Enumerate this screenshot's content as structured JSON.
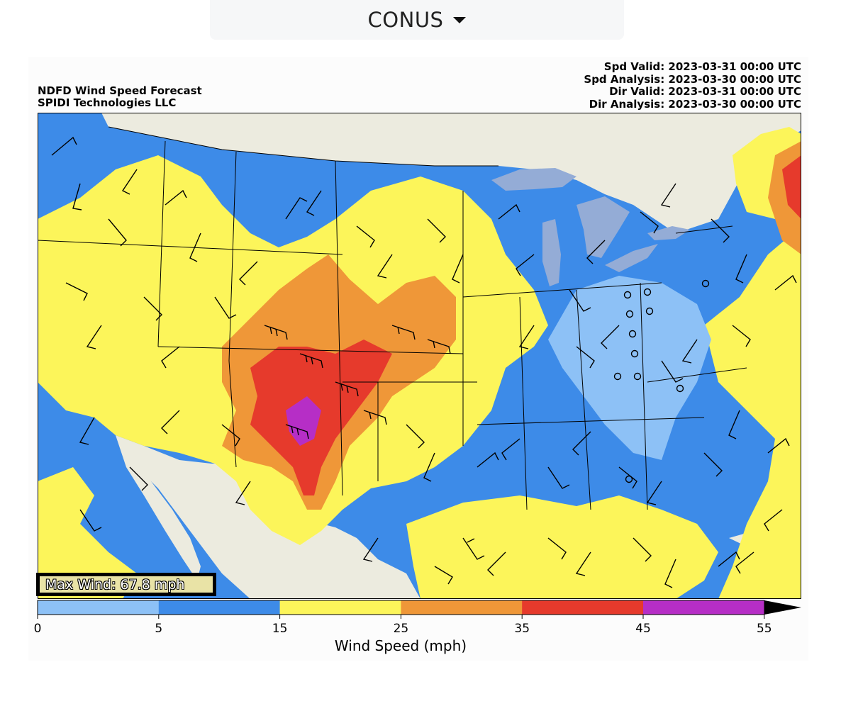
{
  "region_select": {
    "value": "CONUS"
  },
  "figure": {
    "title": [
      "NDFD Wind Speed Forecast",
      "SPIDI Technologies LLC"
    ],
    "valid_times": [
      "Spd Valid: 2023-03-31 00:00 UTC",
      "Spd Analysis: 2023-03-30 00:00 UTC",
      "Dir Valid: 2023-03-31 00:00 UTC",
      "Dir Analysis: 2023-03-30 00:00 UTC"
    ],
    "max_wind": "Max Wind: 67.8 mph"
  },
  "colors": {
    "ocean": "#3d8be8",
    "land": "#ecebdf",
    "lakes": "#94acd6",
    "level_0_5": "#8dc1f6",
    "level_5_15": "#3d8be8",
    "level_15_25": "#fcf55a",
    "level_25_35": "#ef9738",
    "level_35_45": "#e63a2c",
    "level_45_55": "#b62ec6"
  },
  "colorbar": {
    "label": "Wind Speed (mph)",
    "ticks": [
      "0",
      "5",
      "15",
      "25",
      "35",
      "45",
      "55"
    ],
    "bounds": [
      0,
      5,
      15,
      25,
      35,
      45,
      55
    ],
    "extend": "max"
  }
}
